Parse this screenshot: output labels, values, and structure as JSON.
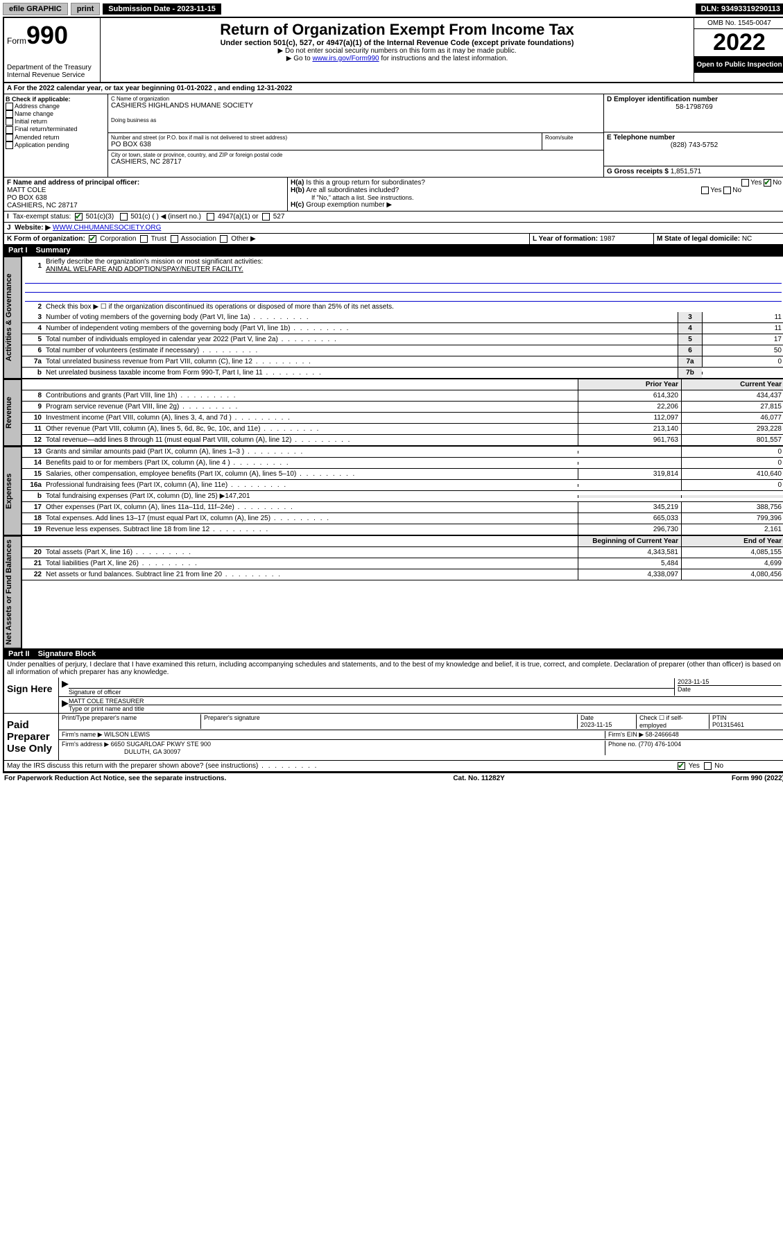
{
  "topbar": {
    "efile": "efile GRAPHIC",
    "print": "print",
    "submission_label": "Submission Date - 2023-11-15",
    "dln": "DLN: 93493319290113"
  },
  "header": {
    "form_label": "Form",
    "form_number": "990",
    "dept": "Department of the Treasury",
    "irs": "Internal Revenue Service",
    "title": "Return of Organization Exempt From Income Tax",
    "subtitle": "Under section 501(c), 527, or 4947(a)(1) of the Internal Revenue Code (except private foundations)",
    "note1": "▶ Do not enter social security numbers on this form as it may be made public.",
    "note2_pre": "▶ Go to ",
    "note2_link": "www.irs.gov/Form990",
    "note2_post": " for instructions and the latest information.",
    "omb": "OMB No. 1545-0047",
    "year": "2022",
    "open": "Open to Public Inspection"
  },
  "lineA": {
    "text_pre": "For the 2022 calendar year, or tax year beginning ",
    "begin": "01-01-2022",
    "mid": " , and ending ",
    "end": "12-31-2022"
  },
  "sectionB": {
    "hdr": "B Check if applicable:",
    "opts": [
      "Address change",
      "Name change",
      "Initial return",
      "Final return/terminated",
      "Amended return",
      "Application pending"
    ]
  },
  "sectionC": {
    "label": "C Name of organization",
    "name": "CASHIERS HIGHLANDS HUMANE SOCIETY",
    "dba_label": "Doing business as",
    "street_label": "Number and street (or P.O. box if mail is not delivered to street address)",
    "room_label": "Room/suite",
    "street": "PO BOX 638",
    "city_label": "City or town, state or province, country, and ZIP or foreign postal code",
    "city": "CASHIERS, NC  28717"
  },
  "sectionD": {
    "label": "D Employer identification number",
    "value": "58-1798769"
  },
  "sectionE": {
    "label": "E Telephone number",
    "value": "(828) 743-5752"
  },
  "sectionG": {
    "label": "G Gross receipts $",
    "value": "1,851,571"
  },
  "sectionF": {
    "label": "F Name and address of principal officer:",
    "name": "MATT COLE",
    "addr1": "PO BOX 638",
    "addr2": "CASHIERS, NC  28717"
  },
  "sectionH": {
    "a": "Is this a group return for subordinates?",
    "b": "Are all subordinates included?",
    "b_note": "If \"No,\" attach a list. See instructions.",
    "c": "Group exemption number ▶",
    "yes": "Yes",
    "no": "No"
  },
  "lineI": {
    "label": "Tax-exempt status:",
    "opt1": "501(c)(3)",
    "opt2": "501(c) (  ) ◀ (insert no.)",
    "opt3": "4947(a)(1) or",
    "opt4": "527"
  },
  "lineJ": {
    "label": "Website: ▶",
    "value": "WWW.CHHUMANESOCIETY.ORG"
  },
  "lineK": {
    "label": "K Form of organization:",
    "opts": [
      "Corporation",
      "Trust",
      "Association",
      "Other ▶"
    ]
  },
  "lineL": {
    "label": "L Year of formation:",
    "value": "1987"
  },
  "lineM": {
    "label": "M State of legal domicile:",
    "value": "NC"
  },
  "part1": {
    "label": "Part I",
    "title": "Summary",
    "line1_label": "Briefly describe the organization's mission or most significant activities:",
    "line1_text": "ANIMAL WELFARE AND ADOPTION/SPAY/NEUTER FACILITY.",
    "line2": "Check this box ▶ ☐ if the organization discontinued its operations or disposed of more than 25% of its net assets.",
    "tabs": {
      "gov": "Activities & Governance",
      "rev": "Revenue",
      "exp": "Expenses",
      "net": "Net Assets or Fund Balances"
    },
    "gov_lines": [
      {
        "n": "3",
        "d": "Number of voting members of the governing body (Part VI, line 1a)",
        "box": "3",
        "v": "11"
      },
      {
        "n": "4",
        "d": "Number of independent voting members of the governing body (Part VI, line 1b)",
        "box": "4",
        "v": "11"
      },
      {
        "n": "5",
        "d": "Total number of individuals employed in calendar year 2022 (Part V, line 2a)",
        "box": "5",
        "v": "17"
      },
      {
        "n": "6",
        "d": "Total number of volunteers (estimate if necessary)",
        "box": "6",
        "v": "50"
      },
      {
        "n": "7a",
        "d": "Total unrelated business revenue from Part VIII, column (C), line 12",
        "box": "7a",
        "v": "0"
      },
      {
        "n": "b",
        "d": "Net unrelated business taxable income from Form 990-T, Part I, line 11",
        "box": "7b",
        "v": ""
      }
    ],
    "col_prior": "Prior Year",
    "col_current": "Current Year",
    "rev_lines": [
      {
        "n": "8",
        "d": "Contributions and grants (Part VIII, line 1h)",
        "p": "614,320",
        "c": "434,437"
      },
      {
        "n": "9",
        "d": "Program service revenue (Part VIII, line 2g)",
        "p": "22,206",
        "c": "27,815"
      },
      {
        "n": "10",
        "d": "Investment income (Part VIII, column (A), lines 3, 4, and 7d )",
        "p": "112,097",
        "c": "46,077"
      },
      {
        "n": "11",
        "d": "Other revenue (Part VIII, column (A), lines 5, 6d, 8c, 9c, 10c, and 11e)",
        "p": "213,140",
        "c": "293,228"
      },
      {
        "n": "12",
        "d": "Total revenue—add lines 8 through 11 (must equal Part VIII, column (A), line 12)",
        "p": "961,763",
        "c": "801,557"
      }
    ],
    "exp_lines": [
      {
        "n": "13",
        "d": "Grants and similar amounts paid (Part IX, column (A), lines 1–3 )",
        "p": "",
        "c": "0"
      },
      {
        "n": "14",
        "d": "Benefits paid to or for members (Part IX, column (A), line 4 )",
        "p": "",
        "c": "0"
      },
      {
        "n": "15",
        "d": "Salaries, other compensation, employee benefits (Part IX, column (A), lines 5–10)",
        "p": "319,814",
        "c": "410,640"
      },
      {
        "n": "16a",
        "d": "Professional fundraising fees (Part IX, column (A), line 11e)",
        "p": "",
        "c": "0"
      },
      {
        "n": "b",
        "d": "Total fundraising expenses (Part IX, column (D), line 25) ▶147,201",
        "p": null,
        "c": null
      },
      {
        "n": "17",
        "d": "Other expenses (Part IX, column (A), lines 11a–11d, 11f–24e)",
        "p": "345,219",
        "c": "388,756"
      },
      {
        "n": "18",
        "d": "Total expenses. Add lines 13–17 (must equal Part IX, column (A), line 25)",
        "p": "665,033",
        "c": "799,396"
      },
      {
        "n": "19",
        "d": "Revenue less expenses. Subtract line 18 from line 12",
        "p": "296,730",
        "c": "2,161"
      }
    ],
    "col_begin": "Beginning of Current Year",
    "col_end": "End of Year",
    "net_lines": [
      {
        "n": "20",
        "d": "Total assets (Part X, line 16)",
        "p": "4,343,581",
        "c": "4,085,155"
      },
      {
        "n": "21",
        "d": "Total liabilities (Part X, line 26)",
        "p": "5,484",
        "c": "4,699"
      },
      {
        "n": "22",
        "d": "Net assets or fund balances. Subtract line 21 from line 20",
        "p": "4,338,097",
        "c": "4,080,456"
      }
    ]
  },
  "part2": {
    "label": "Part II",
    "title": "Signature Block",
    "perjury": "Under penalties of perjury, I declare that I have examined this return, including accompanying schedules and statements, and to the best of my knowledge and belief, it is true, correct, and complete. Declaration of preparer (other than officer) is based on all information of which preparer has any knowledge.",
    "sign_here": "Sign Here",
    "sig_officer": "Signature of officer",
    "sig_date": "2023-11-15",
    "date_label": "Date",
    "officer_name": "MATT COLE  TREASURER",
    "officer_name_label": "Type or print name and title",
    "paid": "Paid Preparer Use Only",
    "prep_name_label": "Print/Type preparer's name",
    "prep_sig_label": "Preparer's signature",
    "prep_date_label": "Date",
    "prep_date": "2023-11-15",
    "self_emp": "Check ☐ if self-employed",
    "ptin_label": "PTIN",
    "ptin": "P01315461",
    "firm_name_label": "Firm's name   ▶",
    "firm_name": "WILSON LEWIS",
    "firm_ein_label": "Firm's EIN ▶",
    "firm_ein": "58-2466648",
    "firm_addr_label": "Firm's address ▶",
    "firm_addr1": "6650 SUGARLOAF PKWY STE 900",
    "firm_addr2": "DULUTH, GA  30097",
    "phone_label": "Phone no.",
    "phone": "(770) 476-1004",
    "discuss": "May the IRS discuss this return with the preparer shown above? (see instructions)"
  },
  "footer": {
    "left": "For Paperwork Reduction Act Notice, see the separate instructions.",
    "mid": "Cat. No. 11282Y",
    "right": "Form 990 (2022)"
  }
}
